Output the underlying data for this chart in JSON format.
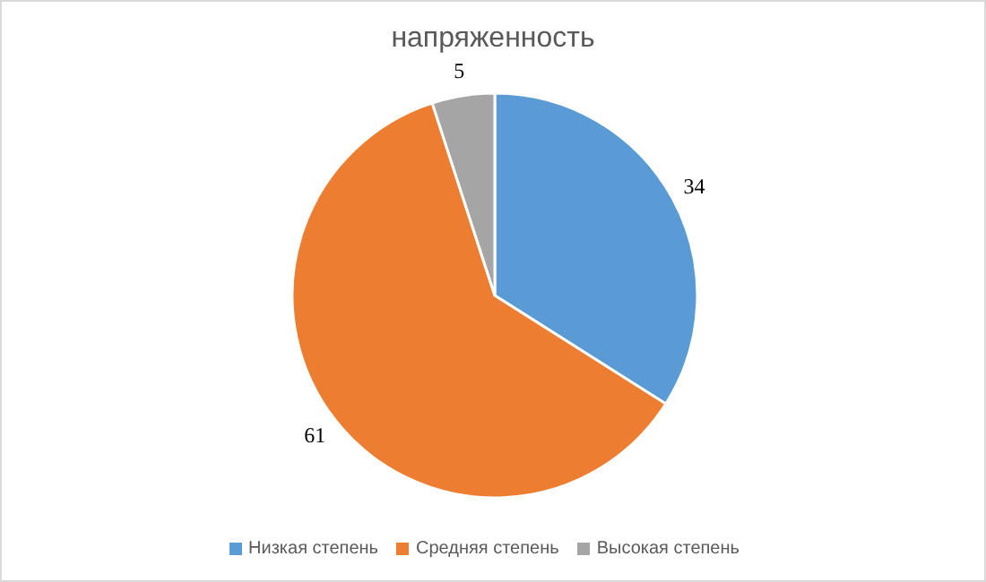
{
  "chart_data": {
    "type": "pie",
    "title": "напряженность",
    "categories": [
      "Низкая степень",
      "Средняя степень",
      "Высокая степень"
    ],
    "values": [
      34,
      61,
      5
    ],
    "colors": [
      "#5b9bd5",
      "#ed7d31",
      "#a5a5a5"
    ],
    "data_labels": true,
    "legend": "bottom"
  }
}
